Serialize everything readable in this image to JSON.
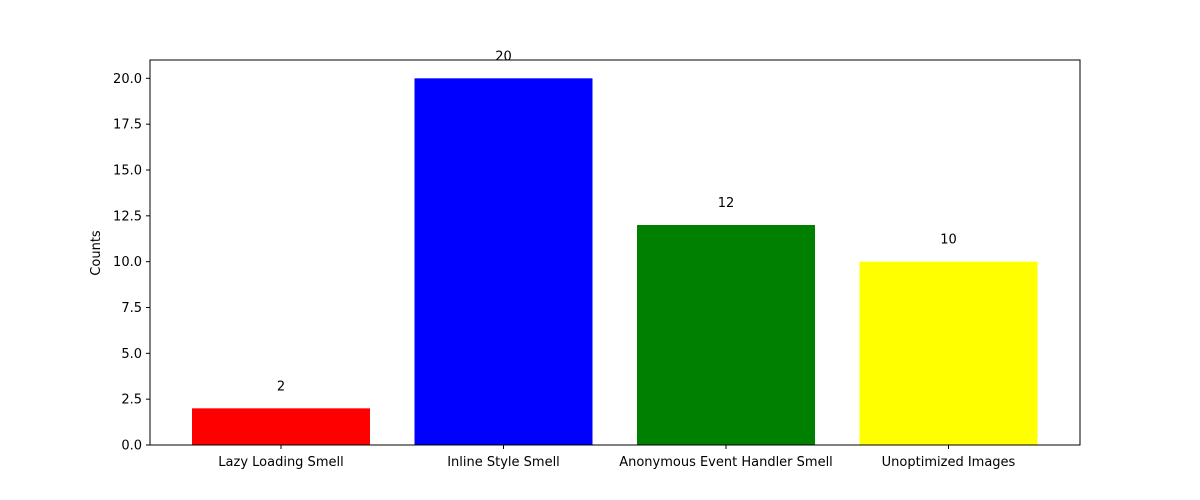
{
  "chart_data": {
    "type": "bar",
    "title": "",
    "xlabel": "",
    "ylabel": "Counts",
    "categories": [
      "Lazy Loading Smell",
      "Inline Style Smell",
      "Anonymous Event Handler Smell",
      "Unoptimized Images"
    ],
    "values": [
      2,
      20,
      12,
      10
    ],
    "colors": [
      "#ff0000",
      "#0000ff",
      "#008000",
      "#ffff00"
    ],
    "data_labels": [
      "2",
      "20",
      "12",
      "10"
    ],
    "ylim": [
      0,
      21
    ],
    "yticks": [
      0.0,
      2.5,
      5.0,
      7.5,
      10.0,
      12.5,
      15.0,
      17.5,
      20.0
    ],
    "ytick_labels": [
      "0.0",
      "2.5",
      "5.0",
      "7.5",
      "10.0",
      "12.5",
      "15.0",
      "17.5",
      "20.0"
    ],
    "grid": false,
    "legend": "none"
  }
}
